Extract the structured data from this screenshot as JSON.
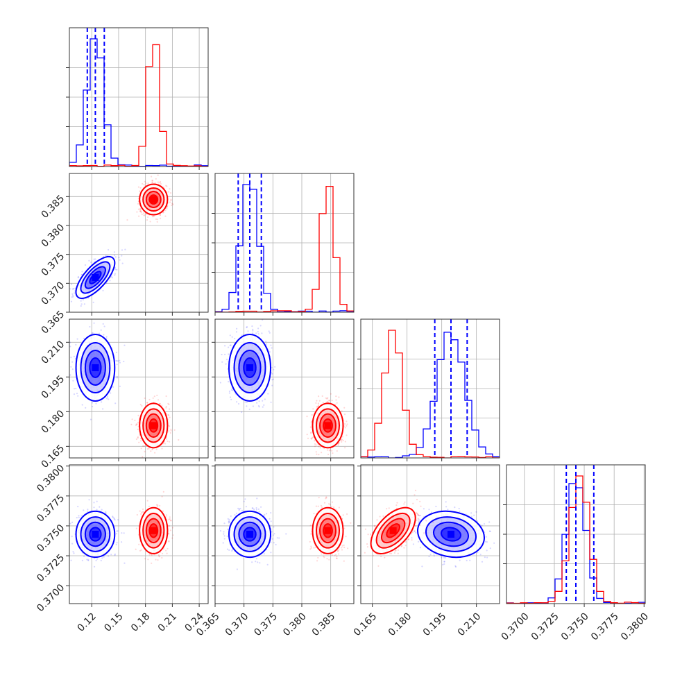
{
  "chart_data": {
    "type": "corner",
    "colors": {
      "blue": "#0000ff",
      "red": "#ff0000"
    },
    "series": [
      {
        "color": "#0000ff",
        "mean": [
          0.124,
          0.371,
          0.199,
          0.3743
        ],
        "sd": [
          0.009,
          0.0015,
          0.006,
          0.0008
        ],
        "corr_01": 0.7,
        "corr_23": -0.15
      },
      {
        "color": "#ff0000",
        "mean": [
          0.189,
          0.3845,
          0.174,
          0.3746
        ],
        "sd": [
          0.0065,
          0.0011,
          0.004,
          0.0008
        ],
        "corr_01": 0.0,
        "corr_23": 0.55
      }
    ],
    "quantiles_series": "blue",
    "quantiles": [
      [
        0.115,
        0.124,
        0.134
      ],
      [
        0.369,
        0.371,
        0.373
      ],
      [
        0.192,
        0.199,
        0.206
      ],
      [
        0.3735,
        0.3743,
        0.3758
      ]
    ],
    "axis_ranges": [
      [
        0.095,
        0.25
      ],
      [
        0.365,
        0.389
      ],
      [
        0.16,
        0.22
      ],
      [
        0.3685,
        0.3801
      ]
    ],
    "ticks": [
      {
        "values": [
          0.12,
          0.15,
          0.18,
          0.21,
          0.24
        ],
        "labels": [
          "0.12",
          "0.15",
          "0.18",
          "0.21",
          "0.24"
        ]
      },
      {
        "values": [
          0.365,
          0.37,
          0.375,
          0.38,
          0.385
        ],
        "labels": [
          "0.365",
          "0.370",
          "0.375",
          "0.380",
          "0.385"
        ]
      },
      {
        "values": [
          0.165,
          0.18,
          0.195,
          0.21
        ],
        "labels": [
          "0.165",
          "0.180",
          "0.195",
          "0.210"
        ]
      },
      {
        "values": [
          0.37,
          0.3725,
          0.375,
          0.3775,
          0.38
        ],
        "labels": [
          "0.3700",
          "0.3725",
          "0.3750",
          "0.3775",
          "0.3800"
        ]
      }
    ],
    "grid": true
  }
}
